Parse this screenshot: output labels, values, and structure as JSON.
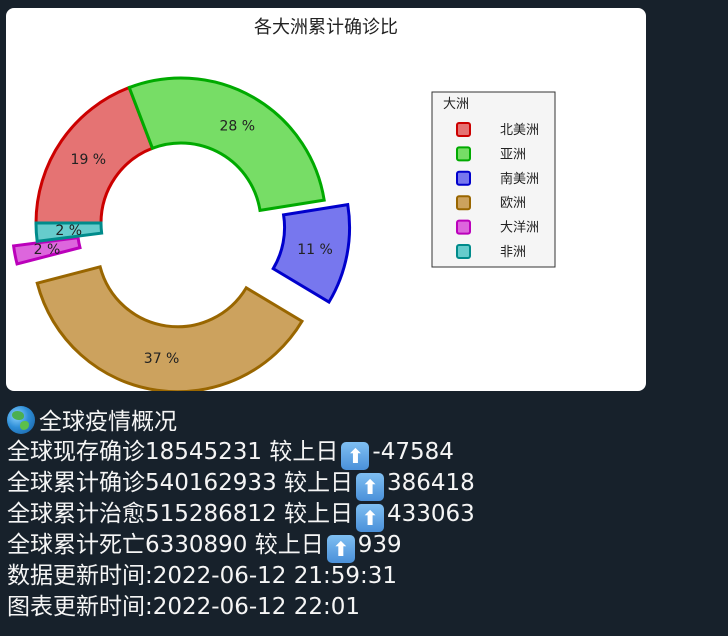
{
  "chart_data": {
    "type": "pie",
    "title": "各大洲累计确诊比",
    "legend_title": "大洲",
    "legend_position": "right",
    "slices": [
      {
        "name": "北美洲",
        "percent": 19,
        "label": "19 %",
        "explode": false,
        "fill": "#e57373",
        "edge": "#cc0000"
      },
      {
        "name": "亚洲",
        "percent": 28,
        "label": "28 %",
        "explode": false,
        "fill": "#77dd66",
        "edge": "#00aa00"
      },
      {
        "name": "南美洲",
        "percent": 11,
        "label": "11 %",
        "explode": true,
        "fill": "#7777ee",
        "edge": "#0000cc"
      },
      {
        "name": "欧洲",
        "percent": 37,
        "label": "37 %",
        "explode": true,
        "fill": "#cca25e",
        "edge": "#996600"
      },
      {
        "name": "大洋洲",
        "percent": 2,
        "label": "2 %",
        "explode": true,
        "fill": "#dd66dd",
        "edge": "#bb00bb"
      },
      {
        "name": "非洲",
        "percent": 2,
        "label": "2 %",
        "explode": false,
        "fill": "#66cccc",
        "edge": "#008b8b"
      }
    ]
  },
  "message": {
    "header": "全球疫情概况",
    "header_icon": "globe-emoji",
    "lines": [
      {
        "prefix": "全球现存确诊18545231 较上日",
        "icon": "up-arrow-emoji",
        "arrow": "⬆",
        "delta": "-47584"
      },
      {
        "prefix": "全球累计确诊540162933 较上日",
        "icon": "up-arrow-emoji",
        "arrow": "⬆",
        "delta": "386418"
      },
      {
        "prefix": "全球累计治愈515286812 较上日",
        "icon": "up-arrow-emoji",
        "arrow": "⬆",
        "delta": "433063"
      },
      {
        "prefix": "全球累计死亡6330890 较上日",
        "icon": "up-arrow-emoji",
        "arrow": "⬆",
        "delta": "939"
      }
    ],
    "data_update": "数据更新时间:2022-06-12 21:59:31",
    "chart_update": "图表更新时间:2022-06-12 22:01"
  }
}
